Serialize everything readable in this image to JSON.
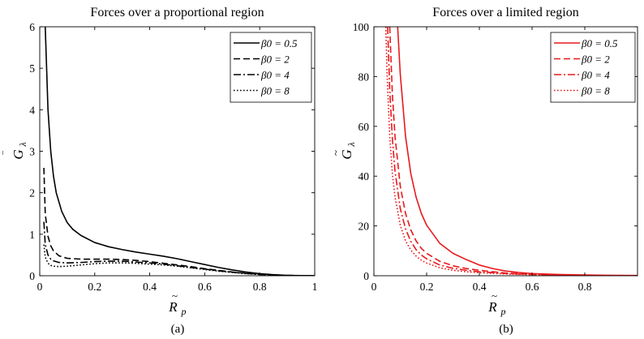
{
  "chart_data": [
    {
      "type": "line",
      "caption": "(a)",
      "title": "Forces over a proportional region",
      "xlabel": "R̃p",
      "ylabel": "Ḡλ",
      "xlim": [
        0,
        1
      ],
      "ylim": [
        0,
        6
      ],
      "xticks": [
        "0",
        "0.2",
        "0.4",
        "0.6",
        "0.8",
        "1"
      ],
      "yticks": [
        "0",
        "1",
        "2",
        "3",
        "4",
        "5",
        "6"
      ],
      "color": "#000000",
      "legend_position": "top-right",
      "series": [
        {
          "name": "β0 = 0.5",
          "dash": "solid",
          "x": [
            0.02,
            0.03,
            0.04,
            0.05,
            0.06,
            0.08,
            0.1,
            0.12,
            0.15,
            0.2,
            0.25,
            0.3,
            0.35,
            0.4,
            0.45,
            0.5,
            0.55,
            0.6,
            0.65,
            0.7,
            0.75,
            0.8,
            0.85,
            0.9,
            0.95,
            1.0
          ],
          "y": [
            6.0,
            4.0,
            3.0,
            2.4,
            2.0,
            1.55,
            1.28,
            1.12,
            0.97,
            0.8,
            0.7,
            0.63,
            0.57,
            0.52,
            0.47,
            0.41,
            0.34,
            0.27,
            0.2,
            0.14,
            0.09,
            0.05,
            0.025,
            0.01,
            0.003,
            0.0
          ]
        },
        {
          "name": "β0 = 2",
          "dash": "dashed",
          "x": [
            0.015,
            0.02,
            0.03,
            0.04,
            0.05,
            0.07,
            0.1,
            0.15,
            0.2,
            0.25,
            0.3,
            0.35,
            0.4,
            0.45,
            0.5,
            0.55,
            0.6,
            0.65,
            0.7,
            0.75,
            0.8,
            0.85,
            0.9,
            0.95,
            1.0
          ],
          "y": [
            2.6,
            1.5,
            0.95,
            0.72,
            0.6,
            0.48,
            0.42,
            0.4,
            0.4,
            0.4,
            0.39,
            0.37,
            0.34,
            0.3,
            0.26,
            0.22,
            0.17,
            0.13,
            0.09,
            0.06,
            0.035,
            0.018,
            0.008,
            0.002,
            0.0
          ]
        },
        {
          "name": "β0 = 4",
          "dash": "dashdot",
          "x": [
            0.015,
            0.02,
            0.03,
            0.04,
            0.05,
            0.07,
            0.1,
            0.15,
            0.2,
            0.25,
            0.3,
            0.35,
            0.4,
            0.45,
            0.5,
            0.55,
            0.6,
            0.65,
            0.7,
            0.75,
            0.8,
            0.85,
            0.9,
            0.95,
            1.0
          ],
          "y": [
            1.3,
            0.75,
            0.5,
            0.4,
            0.36,
            0.32,
            0.31,
            0.32,
            0.34,
            0.35,
            0.35,
            0.33,
            0.31,
            0.28,
            0.24,
            0.2,
            0.16,
            0.12,
            0.085,
            0.055,
            0.032,
            0.016,
            0.007,
            0.002,
            0.0
          ]
        },
        {
          "name": "β0 = 8",
          "dash": "dotted",
          "x": [
            0.015,
            0.02,
            0.03,
            0.04,
            0.05,
            0.07,
            0.1,
            0.15,
            0.2,
            0.25,
            0.3,
            0.35,
            0.4,
            0.45,
            0.5,
            0.55,
            0.6,
            0.65,
            0.7,
            0.75,
            0.8,
            0.85,
            0.9,
            0.95,
            1.0
          ],
          "y": [
            0.75,
            0.45,
            0.3,
            0.25,
            0.23,
            0.22,
            0.23,
            0.26,
            0.29,
            0.31,
            0.31,
            0.3,
            0.28,
            0.26,
            0.23,
            0.19,
            0.15,
            0.11,
            0.08,
            0.05,
            0.03,
            0.015,
            0.006,
            0.002,
            0.0
          ]
        }
      ]
    },
    {
      "type": "line",
      "caption": "(b)",
      "title": "Forces over a limited region",
      "xlabel": "R̃p",
      "ylabel": "G̃λ",
      "xlim": [
        0,
        1
      ],
      "ylim": [
        0,
        100
      ],
      "xticks": [
        "0",
        "0.2",
        "0.4",
        "0.6",
        "0.8"
      ],
      "yticks": [
        "0",
        "20",
        "40",
        "60",
        "80",
        "100"
      ],
      "color": "#e8191c",
      "legend_position": "top-right",
      "series": [
        {
          "name": "β0 = 0.5",
          "dash": "solid",
          "x": [
            0.09,
            0.1,
            0.12,
            0.14,
            0.16,
            0.18,
            0.2,
            0.25,
            0.3,
            0.35,
            0.4,
            0.45,
            0.5,
            0.55,
            0.6,
            0.7,
            0.8,
            0.9,
            1.0
          ],
          "y": [
            100,
            81,
            56,
            41,
            31.6,
            25,
            20.3,
            13,
            9,
            6.5,
            4.3,
            2.9,
            1.9,
            1.3,
            0.9,
            0.5,
            0.3,
            0.15,
            0.1
          ]
        },
        {
          "name": "β0 = 2",
          "dash": "dashed",
          "x": [
            0.06,
            0.07,
            0.08,
            0.1,
            0.12,
            0.14,
            0.16,
            0.18,
            0.2,
            0.25,
            0.3,
            0.35,
            0.4,
            0.45,
            0.5,
            0.6,
            0.7,
            0.8,
            0.9,
            1.0
          ],
          "y": [
            100,
            73,
            56,
            36,
            25,
            18.4,
            14,
            11,
            9,
            5.8,
            4,
            2.9,
            2.2,
            1.6,
            1.1,
            0.6,
            0.35,
            0.2,
            0.1,
            0.05
          ]
        },
        {
          "name": "β0 = 4",
          "dash": "dashdot",
          "x": [
            0.052,
            0.06,
            0.07,
            0.08,
            0.1,
            0.12,
            0.14,
            0.16,
            0.18,
            0.2,
            0.25,
            0.3,
            0.35,
            0.4,
            0.5,
            0.6,
            0.7,
            0.8,
            0.9,
            1.0
          ],
          "y": [
            100,
            75,
            55,
            42,
            27,
            18.8,
            13.8,
            10.5,
            8.3,
            6.8,
            4.3,
            3,
            2.2,
            1.6,
            0.9,
            0.5,
            0.3,
            0.15,
            0.08,
            0.04
          ]
        },
        {
          "name": "β0 = 8",
          "dash": "dotted",
          "x": [
            0.045,
            0.05,
            0.06,
            0.07,
            0.08,
            0.1,
            0.12,
            0.14,
            0.16,
            0.18,
            0.2,
            0.25,
            0.3,
            0.35,
            0.4,
            0.5,
            0.6,
            0.7,
            0.8,
            0.9,
            1.0
          ],
          "y": [
            100,
            81,
            56,
            41,
            31.6,
            20.3,
            14,
            10.3,
            7.9,
            6.2,
            5.1,
            3.2,
            2.2,
            1.6,
            1.2,
            0.7,
            0.4,
            0.2,
            0.1,
            0.06,
            0.03
          ]
        }
      ]
    }
  ]
}
